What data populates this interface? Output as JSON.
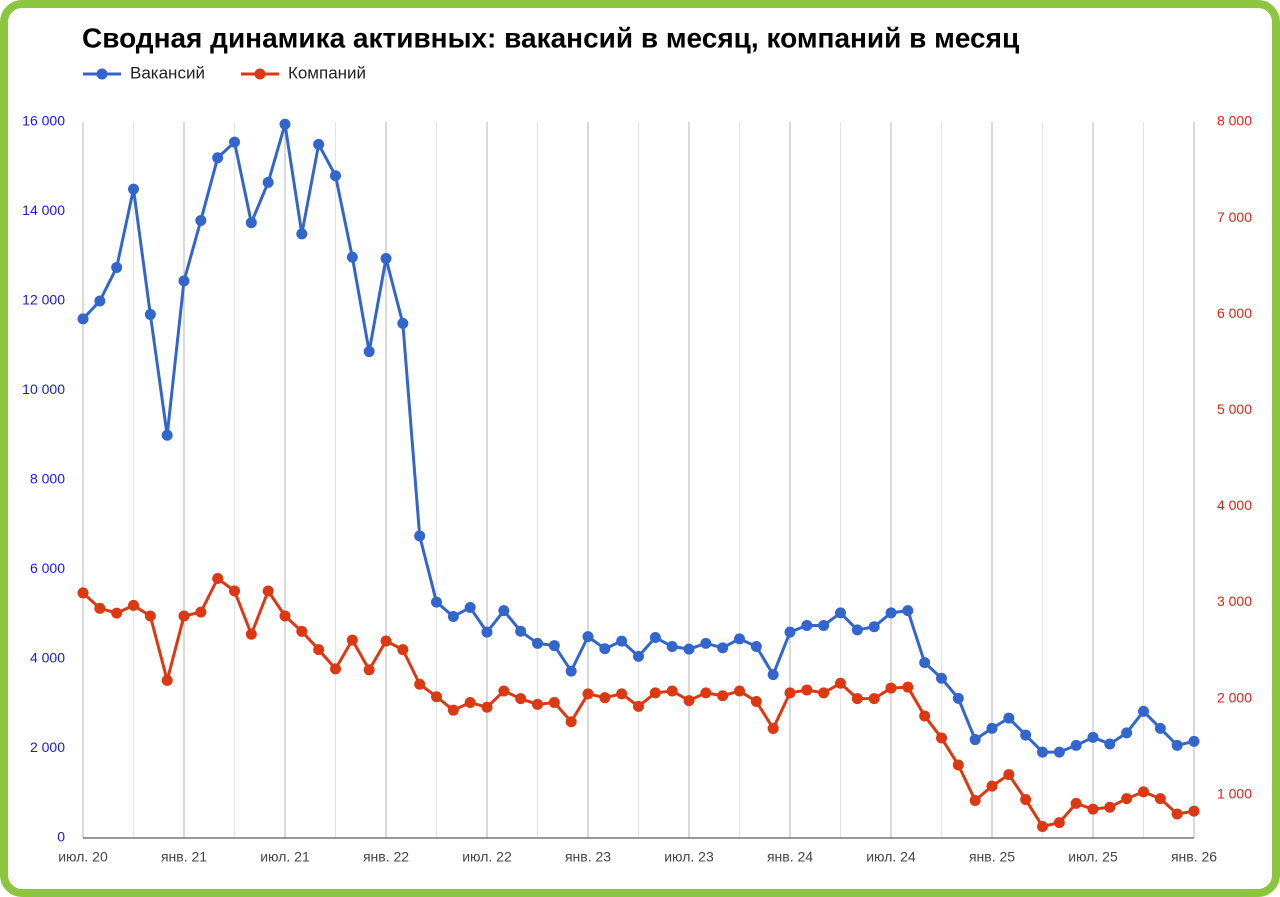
{
  "chart_data": {
    "type": "line",
    "title": "Сводная динамика активных: вакансий в месяц, компаний в месяц",
    "categories": [
      "июл. 20",
      null,
      null,
      null,
      null,
      null,
      "янв. 21",
      null,
      null,
      null,
      null,
      null,
      "июл. 21",
      null,
      null,
      null,
      null,
      null,
      "янв. 22",
      null,
      null,
      null,
      null,
      null,
      "июл. 22",
      null,
      null,
      null,
      null,
      null,
      "янв. 23",
      null,
      null,
      null,
      null,
      null,
      "июл. 23",
      null,
      null,
      null,
      null,
      null,
      "янв. 24",
      null,
      null,
      null,
      null,
      null,
      "июл. 24",
      null,
      null,
      null,
      null,
      null,
      "янв. 25",
      null,
      null,
      null,
      null,
      null,
      "июл. 25",
      null,
      null,
      null,
      null,
      null,
      "янв. 26"
    ],
    "series": [
      {
        "name": "Вакансий",
        "color": "#3366cc",
        "axis": "y",
        "values": [
          11600,
          12000,
          12750,
          14500,
          11700,
          9000,
          12450,
          13800,
          15200,
          15550,
          13750,
          14650,
          15950,
          13500,
          15500,
          14800,
          12980,
          10870,
          12950,
          11500,
          6750,
          5270,
          4950,
          5150,
          4600,
          5080,
          4620,
          4350,
          4300,
          3730,
          4500,
          4230,
          4400,
          4060,
          4480,
          4280,
          4220,
          4350,
          4250,
          4450,
          4280,
          3650,
          4600,
          4750,
          4750,
          5030,
          4650,
          4720,
          5030,
          5080,
          3920,
          3570,
          3120,
          2200,
          2450,
          2680,
          2300,
          1920,
          1920,
          2070,
          2250,
          2100,
          2350,
          2830,
          2450,
          2070,
          2160
        ]
      },
      {
        "name": "Компаний",
        "color": "#dc3912",
        "axis": "y2",
        "values": [
          3100,
          2940,
          2890,
          2970,
          2860,
          2190,
          2860,
          2900,
          3250,
          3120,
          2670,
          3120,
          2860,
          2700,
          2510,
          2310,
          2610,
          2300,
          2600,
          2510,
          2150,
          2020,
          1880,
          1960,
          1910,
          2080,
          2000,
          1940,
          1960,
          1760,
          2050,
          2010,
          2050,
          1920,
          2060,
          2080,
          1980,
          2060,
          2030,
          2080,
          1970,
          1690,
          2060,
          2090,
          2060,
          2160,
          2000,
          2000,
          2110,
          2120,
          1820,
          1590,
          1310,
          940,
          1090,
          1210,
          950,
          670,
          710,
          910,
          850,
          870,
          960,
          1030,
          960,
          800,
          830
        ]
      }
    ],
    "ylim": [
      0,
      16000
    ],
    "yticks": [
      0,
      {
        "value": 2000,
        "label": "2 000"
      },
      {
        "value": 4000,
        "label": "4 000"
      },
      {
        "value": 6000,
        "label": "6 000"
      },
      {
        "value": 8000,
        "label": "8 000"
      },
      {
        "value": 10000,
        "label": "10 000"
      },
      {
        "value": 12000,
        "label": "12 000"
      },
      {
        "value": 14000,
        "label": "14 000"
      },
      {
        "value": 16000,
        "label": "16 000"
      }
    ],
    "y2lim": [
      550,
      8000
    ],
    "y2ticks": [
      {
        "value": 1000,
        "label": "1 000"
      },
      {
        "value": 2000,
        "label": "2 000"
      },
      {
        "value": 3000,
        "label": "3 000"
      },
      {
        "value": 4000,
        "label": "4 000"
      },
      {
        "value": 5000,
        "label": "5 000"
      },
      {
        "value": 6000,
        "label": "6 000"
      },
      {
        "value": 7000,
        "label": "7 000"
      },
      {
        "value": 8000,
        "label": "8 000"
      }
    ],
    "legend": "top-left"
  }
}
